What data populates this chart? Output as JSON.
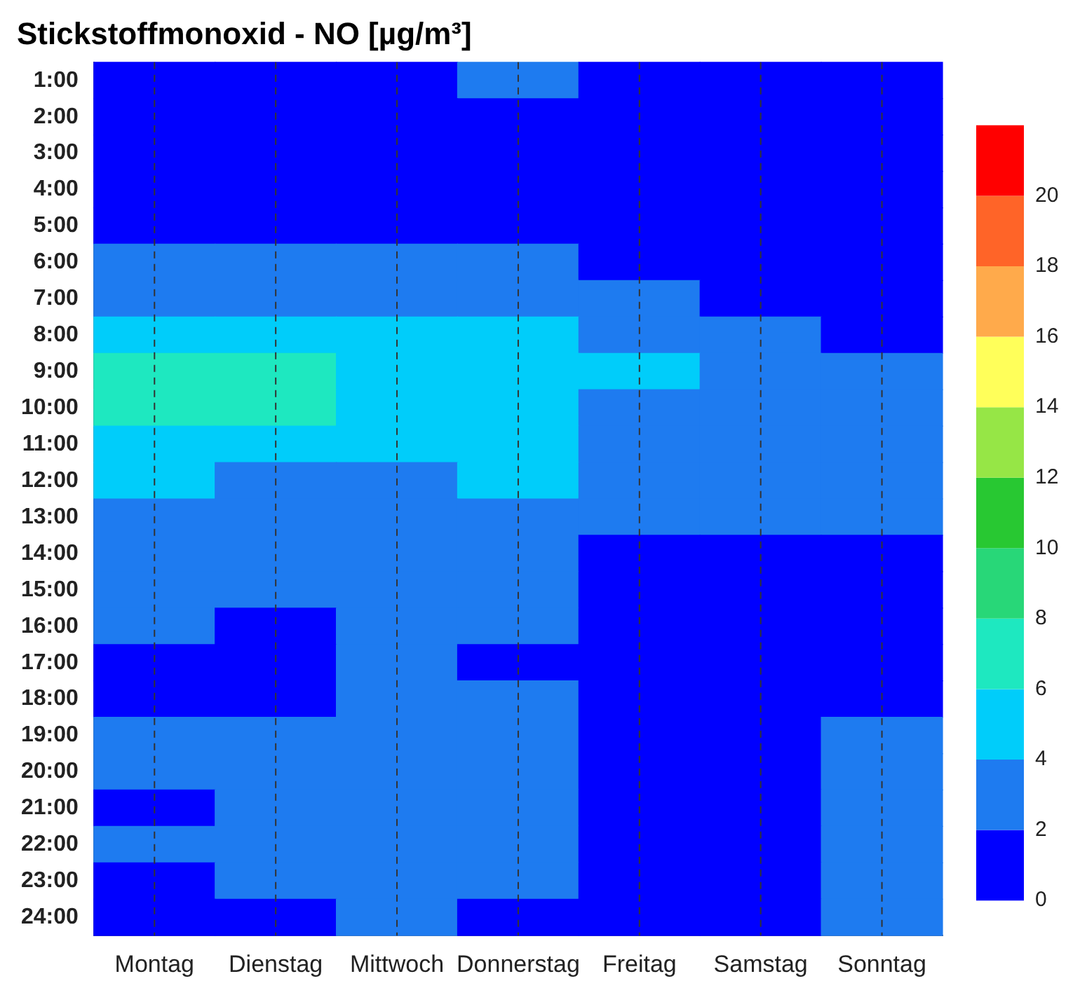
{
  "chart_data": {
    "type": "heatmap",
    "title": "Stickstoffmonoxid - NO [µg/m³]",
    "categories": [
      "Montag",
      "Dienstag",
      "Mittwoch",
      "Donnerstag",
      "Freitag",
      "Samstag",
      "Sonntag"
    ],
    "y_categories": [
      "1:00",
      "2:00",
      "3:00",
      "4:00",
      "5:00",
      "6:00",
      "7:00",
      "8:00",
      "9:00",
      "10:00",
      "11:00",
      "12:00",
      "13:00",
      "14:00",
      "15:00",
      "16:00",
      "17:00",
      "18:00",
      "19:00",
      "20:00",
      "21:00",
      "22:00",
      "23:00",
      "24:00"
    ],
    "cells": [
      [
        1.5,
        1.5,
        1.5,
        3,
        1.5,
        1.5,
        1.5
      ],
      [
        1.5,
        1.5,
        1.5,
        1.5,
        1.5,
        1.5,
        1.5
      ],
      [
        1.5,
        1.5,
        1.5,
        1.5,
        1.5,
        1.5,
        1.5
      ],
      [
        1.5,
        1.5,
        1.5,
        1.5,
        1.5,
        1.5,
        1.5
      ],
      [
        1.5,
        1.5,
        1.5,
        1.5,
        1.5,
        1.5,
        1.5
      ],
      [
        3,
        3,
        3,
        3,
        1.5,
        1.5,
        1.5
      ],
      [
        3,
        3,
        3,
        3,
        3,
        1.5,
        1.5
      ],
      [
        5,
        5,
        5,
        5,
        3,
        3,
        1.5
      ],
      [
        7,
        7,
        5,
        5,
        5,
        3,
        3
      ],
      [
        7,
        7,
        5,
        5,
        3,
        3,
        3
      ],
      [
        5,
        5,
        5,
        5,
        3,
        3,
        3
      ],
      [
        5,
        3,
        3,
        5,
        3,
        3,
        3
      ],
      [
        3,
        3,
        3,
        3,
        3,
        3,
        3
      ],
      [
        3,
        3,
        3,
        3,
        1.5,
        1.5,
        1.5
      ],
      [
        3,
        3,
        3,
        3,
        1.5,
        1.5,
        1.5
      ],
      [
        3,
        1.5,
        3,
        3,
        1.5,
        1.5,
        1.5
      ],
      [
        1.5,
        1.5,
        3,
        1.5,
        1.5,
        1.5,
        1.5
      ],
      [
        1.5,
        1.5,
        3,
        3,
        1.5,
        1.5,
        1.5
      ],
      [
        3,
        3,
        3,
        3,
        1.5,
        1.5,
        3
      ],
      [
        3,
        3,
        3,
        3,
        1.5,
        1.5,
        3
      ],
      [
        1.5,
        3,
        3,
        3,
        1.5,
        1.5,
        3
      ],
      [
        3,
        3,
        3,
        3,
        1.5,
        1.5,
        3
      ],
      [
        1.5,
        3,
        3,
        3,
        1.5,
        1.5,
        3
      ],
      [
        1.5,
        1.5,
        3,
        1.5,
        1.5,
        1.5,
        3
      ]
    ],
    "clim": [
      0,
      22
    ],
    "cticks": [
      0,
      2,
      4,
      6,
      8,
      10,
      12,
      14,
      16,
      18,
      20
    ],
    "grid": "x"
  }
}
